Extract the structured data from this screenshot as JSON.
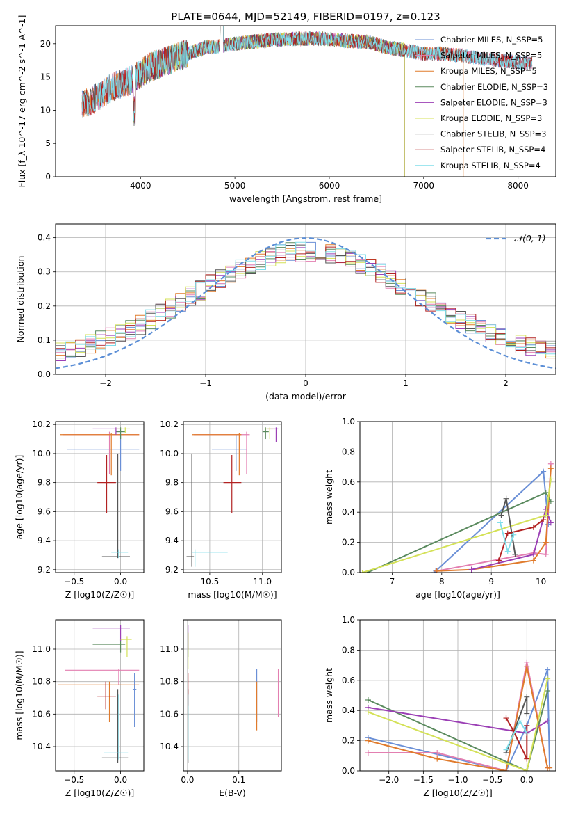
{
  "figure": {
    "title": "PLATE=0644, MJD=52149, FIBERID=0197, z=0.123"
  },
  "chart_data": [
    {
      "id": "spectrum",
      "type": "line",
      "title": "PLATE=0644, MJD=52149, FIBERID=0197, z=0.123",
      "xlabel": "wavelength [Angstrom, rest frame]",
      "ylabel": "Flux [f_λ 10^-17 erg cm^-2 s^-1 A^-1]",
      "xlim": [
        3100,
        8400
      ],
      "ylim": [
        0,
        22.7
      ],
      "xticks": [
        4000,
        5000,
        6000,
        7000,
        8000
      ],
      "yticks": [
        0,
        5,
        10,
        15,
        20
      ],
      "grid": false,
      "legend_position": "right",
      "continuum": {
        "x": [
          3400,
          3500,
          3600,
          3700,
          3800,
          3900,
          4000,
          4100,
          4200,
          4300,
          4400,
          4500,
          4600,
          4700,
          4800,
          4900,
          5000,
          5200,
          5400,
          5600,
          5800,
          6000,
          6200,
          6400,
          6600,
          6800,
          7000,
          7200,
          7400,
          7600,
          7800,
          8000,
          8200
        ],
        "y": [
          11,
          11.5,
          12.5,
          13.5,
          14,
          14.5,
          15.5,
          16.5,
          17,
          17.5,
          18,
          18.5,
          19,
          19.5,
          19.5,
          19.8,
          20,
          20.3,
          20.6,
          20.7,
          20.8,
          20.7,
          20.4,
          20.3,
          19.5,
          19,
          18.5,
          18.5,
          18.2,
          17.8,
          17.5,
          17.2,
          16.8
        ]
      },
      "series": [
        {
          "name": "Chabrier MILES, N_SSP=5",
          "color": "#6a8fd6",
          "x_start": 3380,
          "x_end": 8150
        },
        {
          "name": "Salpeter MILES, N_SSP=5",
          "color": "#e37fb1",
          "x_start": 3380,
          "x_end": 8150
        },
        {
          "name": "Kroupa MILES, N_SSP=5",
          "color": "#e07b2c",
          "x_start": 3380,
          "x_end": 7420
        },
        {
          "name": "Chabrier ELODIE, N_SSP=3",
          "color": "#5a8a5e",
          "x_start": 3900,
          "x_end": 6800
        },
        {
          "name": "Salpeter ELODIE, N_SSP=3",
          "color": "#9b3fb5",
          "x_start": 3900,
          "x_end": 6800
        },
        {
          "name": "Kroupa ELODIE, N_SSP=3",
          "color": "#d4e157",
          "x_start": 3900,
          "x_end": 6800
        },
        {
          "name": "Chabrier STELIB, N_SSP=3",
          "color": "#555555",
          "x_start": 3380,
          "x_end": 8150
        },
        {
          "name": "Salpeter STELIB, N_SSP=4",
          "color": "#b22222",
          "x_start": 3380,
          "x_end": 8150
        },
        {
          "name": "Kroupa STELIB, N_SSP=4",
          "color": "#80deea",
          "x_start": 3380,
          "x_end": 8150
        }
      ]
    },
    {
      "id": "residuals",
      "type": "line",
      "xlabel": "(data-model)/error",
      "ylabel": "Normed distribution",
      "xlim": [
        -2.5,
        2.5
      ],
      "ylim": [
        0,
        0.44
      ],
      "xticks": [
        -2,
        -1,
        0,
        1,
        2
      ],
      "yticks": [
        0.0,
        0.1,
        0.2,
        0.3,
        0.4
      ],
      "grid": true,
      "legend_position": "top-right",
      "reference": {
        "name": "𝒩(0, 1)",
        "color": "#5b8ed6"
      },
      "step_series_colors": [
        "#6a8fd6",
        "#e37fb1",
        "#e07b2c",
        "#5a8a5e",
        "#9b3fb5",
        "#d4e157",
        "#555555",
        "#b22222",
        "#80deea"
      ]
    },
    {
      "id": "age_vs_Z",
      "type": "scatter",
      "xlabel": "Z [log10(Z/Z☉)]",
      "ylabel": "age  [log10(age/yr)]",
      "xlim": [
        -0.7,
        0.25
      ],
      "ylim": [
        9.18,
        10.22
      ],
      "xticks": [
        -0.5,
        0.0
      ],
      "yticks": [
        9.2,
        9.4,
        9.6,
        9.8,
        10.0,
        10.2
      ],
      "grid": true,
      "points": [
        {
          "color": "#6a8fd6",
          "x": 0.0,
          "xlo": -0.58,
          "xhi": 0.2,
          "y": 10.03,
          "ylo": 9.88,
          "yhi": 10.13
        },
        {
          "color": "#e37fb1",
          "x": -0.12,
          "xlo": -0.62,
          "xhi": 0.2,
          "y": 10.13,
          "ylo": 9.86,
          "yhi": 10.15
        },
        {
          "color": "#e07b2c",
          "x": -0.1,
          "xlo": -0.65,
          "xhi": 0.2,
          "y": 10.13,
          "ylo": 9.85,
          "yhi": 10.14
        },
        {
          "color": "#5a8a5e",
          "x": 0.0,
          "xlo": -0.05,
          "xhi": 0.05,
          "y": 10.15,
          "ylo": 10.1,
          "yhi": 10.18
        },
        {
          "color": "#9b3fb5",
          "x": -0.05,
          "xlo": -0.3,
          "xhi": 0.0,
          "y": 10.17,
          "ylo": 10.13,
          "yhi": 10.18
        },
        {
          "color": "#d4e157",
          "x": 0.05,
          "xlo": -0.05,
          "xhi": 0.1,
          "y": 10.17,
          "ylo": 10.14,
          "yhi": 10.18
        },
        {
          "color": "#555555",
          "x": -0.03,
          "xlo": -0.2,
          "xhi": 0.1,
          "y": 9.29,
          "ylo": 9.28,
          "yhi": 10.0
        },
        {
          "color": "#b22222",
          "x": -0.15,
          "xlo": -0.25,
          "xhi": -0.05,
          "y": 9.8,
          "ylo": 9.59,
          "yhi": 9.99
        },
        {
          "color": "#80deea",
          "x": -0.02,
          "xlo": -0.1,
          "xhi": 0.08,
          "y": 9.32,
          "ylo": 9.28,
          "yhi": 9.34
        }
      ]
    },
    {
      "id": "age_vs_mass",
      "type": "scatter",
      "xlabel": "mass [log10(M/M☉)]",
      "ylabel": "",
      "xlim": [
        10.25,
        11.18
      ],
      "ylim": [
        9.18,
        10.22
      ],
      "xticks": [
        10.5,
        11.0
      ],
      "yticks": [
        9.2,
        9.4,
        9.6,
        9.8,
        10.0,
        10.2
      ],
      "grid": true,
      "points": [
        {
          "color": "#6a8fd6",
          "x": 10.75,
          "xlo": 10.52,
          "xhi": 10.85,
          "y": 10.03,
          "ylo": 9.88,
          "yhi": 10.13
        },
        {
          "color": "#e37fb1",
          "x": 10.85,
          "xlo": 10.35,
          "xhi": 10.88,
          "y": 10.13,
          "ylo": 9.86,
          "yhi": 10.15
        },
        {
          "color": "#e07b2c",
          "x": 10.78,
          "xlo": 10.33,
          "xhi": 10.8,
          "y": 10.13,
          "ylo": 9.85,
          "yhi": 10.14
        },
        {
          "color": "#5a8a5e",
          "x": 11.03,
          "xlo": 11.0,
          "xhi": 11.06,
          "y": 10.15,
          "ylo": 10.1,
          "yhi": 10.18
        },
        {
          "color": "#9b3fb5",
          "x": 11.13,
          "xlo": 11.05,
          "xhi": 11.15,
          "y": 10.17,
          "ylo": 10.08,
          "yhi": 10.18
        },
        {
          "color": "#d4e157",
          "x": 11.07,
          "xlo": 11.02,
          "xhi": 11.1,
          "y": 10.17,
          "ylo": 10.1,
          "yhi": 10.18
        },
        {
          "color": "#555555",
          "x": 10.33,
          "xlo": 10.28,
          "xhi": 10.35,
          "y": 9.29,
          "ylo": 9.22,
          "yhi": 10.0
        },
        {
          "color": "#b22222",
          "x": 10.71,
          "xlo": 10.63,
          "xhi": 10.8,
          "y": 9.8,
          "ylo": 9.59,
          "yhi": 9.99
        },
        {
          "color": "#80deea",
          "x": 10.36,
          "xlo": 10.33,
          "xhi": 10.67,
          "y": 9.32,
          "ylo": 9.22,
          "yhi": 9.34
        }
      ]
    },
    {
      "id": "weight_vs_age",
      "type": "line",
      "xlabel": "age  [log10(age/yr)]",
      "ylabel": "mass weight",
      "xlim": [
        6.35,
        10.3
      ],
      "ylim": [
        0,
        1.0
      ],
      "xticks": [
        7,
        8,
        9,
        10
      ],
      "yticks": [
        0.0,
        0.2,
        0.4,
        0.6,
        0.8,
        1.0
      ],
      "grid": true,
      "series": [
        {
          "color": "#6a8fd6",
          "x": [
            7.85,
            7.88,
            10.05,
            10.15
          ],
          "y": [
            0.0,
            0.01,
            0.67,
            0.32
          ]
        },
        {
          "color": "#e37fb1",
          "x": [
            7.9,
            9.85,
            10.1,
            10.2
          ],
          "y": [
            0.01,
            0.13,
            0.12,
            0.72
          ]
        },
        {
          "color": "#e07b2c",
          "x": [
            7.9,
            8.6,
            9.85,
            10.1,
            10.2
          ],
          "y": [
            0.01,
            0.02,
            0.08,
            0.2,
            0.69
          ]
        },
        {
          "color": "#5a8a5e",
          "x": [
            6.5,
            10.1,
            10.2
          ],
          "y": [
            0.0,
            0.53,
            0.47
          ]
        },
        {
          "color": "#9b3fb5",
          "x": [
            8.6,
            9.85,
            10.1,
            10.2
          ],
          "y": [
            0.02,
            0.12,
            0.42,
            0.33
          ]
        },
        {
          "color": "#d4e157",
          "x": [
            6.4,
            10.1,
            10.2
          ],
          "y": [
            0.0,
            0.38,
            0.62
          ]
        },
        {
          "color": "#555555",
          "x": [
            9.2,
            9.3,
            9.48
          ],
          "y": [
            0.38,
            0.49,
            0.12
          ]
        },
        {
          "color": "#b22222",
          "x": [
            9.15,
            9.33,
            9.85,
            10.05
          ],
          "y": [
            0.08,
            0.26,
            0.3,
            0.35
          ]
        },
        {
          "color": "#80deea",
          "x": [
            9.18,
            9.33,
            9.45
          ],
          "y": [
            0.33,
            0.14,
            0.25
          ]
        }
      ]
    },
    {
      "id": "mass_vs_Z",
      "type": "scatter",
      "xlabel": "Z [log10(Z/Z☉)]",
      "ylabel": "mass [log10(M/M☉)]",
      "xlim": [
        -0.7,
        0.25
      ],
      "ylim": [
        10.25,
        11.18
      ],
      "xticks": [
        -0.5,
        0.0
      ],
      "yticks": [
        10.4,
        10.6,
        10.8,
        11.0
      ],
      "grid": true,
      "points": [
        {
          "color": "#6a8fd6",
          "x": 0.15,
          "xlo": 0.13,
          "xhi": 0.17,
          "y": 10.75,
          "ylo": 10.52,
          "yhi": 10.85
        },
        {
          "color": "#e37fb1",
          "x": -0.02,
          "xlo": -0.6,
          "xhi": 0.2,
          "y": 10.87,
          "ylo": 10.78,
          "yhi": 10.88
        },
        {
          "color": "#e07b2c",
          "x": -0.12,
          "xlo": -0.67,
          "xhi": 0.2,
          "y": 10.78,
          "ylo": 10.55,
          "yhi": 10.8
        },
        {
          "color": "#5a8a5e",
          "x": 0.0,
          "xlo": -0.3,
          "xhi": 0.05,
          "y": 11.03,
          "ylo": 10.98,
          "yhi": 11.06
        },
        {
          "color": "#9b3fb5",
          "x": 0.0,
          "xlo": -0.3,
          "xhi": 0.1,
          "y": 11.13,
          "ylo": 11.05,
          "yhi": 11.15
        },
        {
          "color": "#d4e157",
          "x": 0.07,
          "xlo": 0.0,
          "xhi": 0.12,
          "y": 11.06,
          "ylo": 10.95,
          "yhi": 11.08
        },
        {
          "color": "#555555",
          "x": -0.03,
          "xlo": -0.2,
          "xhi": 0.08,
          "y": 10.33,
          "ylo": 10.3,
          "yhi": 10.75
        },
        {
          "color": "#b22222",
          "x": -0.16,
          "xlo": -0.25,
          "xhi": -0.05,
          "y": 10.71,
          "ylo": 10.63,
          "yhi": 10.8
        },
        {
          "color": "#80deea",
          "x": -0.02,
          "xlo": -0.18,
          "xhi": 0.08,
          "y": 10.36,
          "ylo": 10.32,
          "yhi": 10.72
        }
      ]
    },
    {
      "id": "mass_vs_ebv",
      "type": "scatter",
      "xlabel": "E(B-V)",
      "ylabel": "",
      "xlim": [
        -0.008,
        0.183
      ],
      "ylim": [
        10.25,
        11.18
      ],
      "xticks": [
        0.0,
        0.1
      ],
      "yticks": [
        10.4,
        10.6,
        10.8,
        11.0
      ],
      "grid": true,
      "points": [
        {
          "color": "#6a8fd6",
          "x": 0.135,
          "ylo": 10.55,
          "yhi": 10.88
        },
        {
          "color": "#e37fb1",
          "x": 0.177,
          "ylo": 10.58,
          "yhi": 10.88
        },
        {
          "color": "#e07b2c",
          "x": 0.135,
          "ylo": 10.5,
          "yhi": 10.8
        },
        {
          "color": "#5a8a5e",
          "x": 0.001,
          "ylo": 10.95,
          "yhi": 11.1
        },
        {
          "color": "#9b3fb5",
          "x": 0.001,
          "ylo": 11.0,
          "yhi": 11.15
        },
        {
          "color": "#d4e157",
          "x": 0.001,
          "ylo": 10.88,
          "yhi": 11.1
        },
        {
          "color": "#555555",
          "x": 0.001,
          "ylo": 10.3,
          "yhi": 10.75
        },
        {
          "color": "#b22222",
          "x": 0.001,
          "ylo": 10.65,
          "yhi": 10.85
        },
        {
          "color": "#80deea",
          "x": 0.001,
          "ylo": 10.32,
          "yhi": 10.72
        }
      ]
    },
    {
      "id": "weight_vs_Z",
      "type": "line",
      "xlabel": "Z [log10(Z/Z☉)]",
      "ylabel": "mass weight",
      "xlim": [
        -2.42,
        0.42
      ],
      "ylim": [
        0,
        1.0
      ],
      "xticks": [
        -2.0,
        -1.5,
        -1.0,
        -0.5,
        0.0
      ],
      "yticks": [
        0.0,
        0.2,
        0.4,
        0.6,
        0.8,
        1.0
      ],
      "grid": true,
      "series": [
        {
          "color": "#6a8fd6",
          "x": [
            -2.3,
            -0.3,
            0.0,
            0.3,
            0.33
          ],
          "y": [
            0.22,
            0.0,
            0.3,
            0.67,
            0.02
          ]
        },
        {
          "color": "#e37fb1",
          "x": [
            -2.3,
            -1.3,
            -0.3,
            0.0,
            0.3
          ],
          "y": [
            0.12,
            0.12,
            0.0,
            0.72,
            0.02
          ]
        },
        {
          "color": "#e07b2c",
          "x": [
            -2.3,
            -1.3,
            -0.3,
            0.0,
            0.3,
            0.33
          ],
          "y": [
            0.2,
            0.08,
            0.0,
            0.69,
            0.02,
            0.02
          ]
        },
        {
          "color": "#5a8a5e",
          "x": [
            -2.3,
            0.0,
            0.3
          ],
          "y": [
            0.47,
            0.0,
            0.53
          ]
        },
        {
          "color": "#9b3fb5",
          "x": [
            -2.3,
            0.0,
            0.3
          ],
          "y": [
            0.42,
            0.25,
            0.33
          ]
        },
        {
          "color": "#d4e157",
          "x": [
            -2.3,
            0.0,
            0.3
          ],
          "y": [
            0.39,
            0.0,
            0.61
          ]
        },
        {
          "color": "#555555",
          "x": [
            -0.3,
            0.0,
            0.0
          ],
          "y": [
            0.12,
            0.49,
            0.38
          ]
        },
        {
          "color": "#b22222",
          "x": [
            -0.3,
            -0.2,
            0.0,
            0.0
          ],
          "y": [
            0.35,
            0.27,
            0.08,
            0.3
          ]
        },
        {
          "color": "#80deea",
          "x": [
            -0.3,
            -0.1,
            0.0
          ],
          "y": [
            0.14,
            0.33,
            0.25
          ]
        }
      ]
    }
  ]
}
